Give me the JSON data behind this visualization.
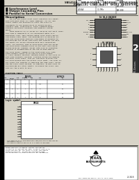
{
  "title_line1": "SN54166, SN54LS166A, SN74166, SN74LS166A",
  "title_line2": "PARALLEL-LOAD 8-BIT SHIFT REGISTERS",
  "bg_color": "#d8d4c8",
  "text_color": "#111111",
  "features": [
    "Synchronous Load",
    "Output Cascading Pins",
    "Parallel to Serial Conversion"
  ],
  "section_tab_num": "2",
  "section_label": "TTL Devices",
  "page_number": "2-323",
  "ordering_headers": [
    "ORDERING INFORMATION",
    "",
    ""
  ],
  "type_rows": [
    [
      "166",
      "35 MHz",
      "$00.000"
    ],
    [
      "LS166A",
      "35 MHz",
      "$00.000"
    ]
  ],
  "left_chip_pins_left": [
    "SER",
    "A",
    "B",
    "C",
    "D",
    "CLKINH",
    "CLK",
    "E"
  ],
  "left_chip_pins_right": [
    "VCC",
    "SH/LD",
    "H",
    "G",
    "F",
    "QH bar",
    "GND",
    "QH"
  ],
  "left_chip_nums_left": [
    "1",
    "2",
    "3",
    "4",
    "5",
    "6",
    "7",
    "8"
  ],
  "left_chip_nums_right": [
    "16",
    "15",
    "14",
    "13",
    "12",
    "11",
    "10",
    "9"
  ],
  "fk_pins_top": [
    "2",
    "3",
    "4",
    "5",
    "6",
    "7",
    "8"
  ],
  "fk_pins_right": [
    "9",
    "10",
    "11",
    "12"
  ],
  "fk_pins_bottom": [
    "13",
    "14",
    "15",
    "16",
    "17",
    "18",
    "19",
    "20"
  ],
  "fk_pins_left": [
    "1",
    "24",
    "23",
    "22"
  ],
  "footer_legal": "PRODUCTION DATA documents contain information\ncurrent as of publication date. Products conform to\nspecifications per the terms of Texas Instruments\nstandard warranty. Production processing does\nnot necessarily include testing of all parameters."
}
